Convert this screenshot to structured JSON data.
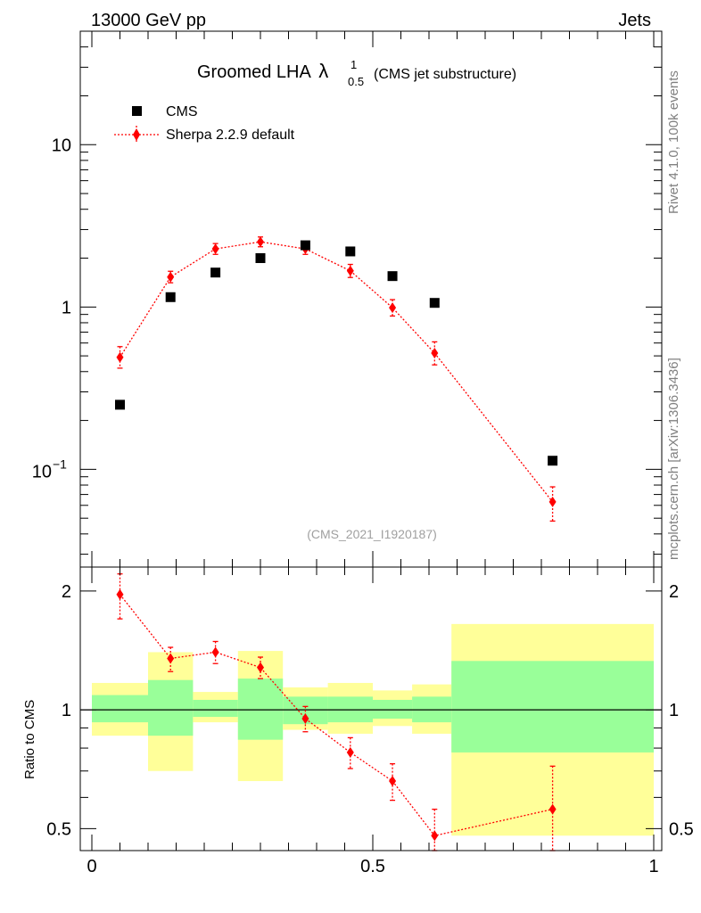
{
  "header": {
    "energy_label": "13000 GeV pp",
    "category_label": "Jets",
    "rivet_label": "Rivet 4.1.0,  100k events",
    "site_label": "mcplots.cern.ch [arXiv:1306.3436]",
    "analysis_id": "(CMS_2021_I1920187)"
  },
  "colors": {
    "data": "#000000",
    "mc": "#ff0000",
    "band_inner": "#99ff99",
    "band_outer": "#ffff99"
  },
  "chart_data": [
    {
      "type": "scatter",
      "panel": "main",
      "title": "Groomed LHA",
      "title_symbol": "λ",
      "title_sup": "1",
      "title_sub": "0.5",
      "title_suffix": "(CMS jet substructure)",
      "yscale": "log",
      "xlim": [
        0,
        1
      ],
      "ylim": [
        0.025,
        50
      ],
      "yticks": [
        {
          "value": 10,
          "label": "10"
        },
        {
          "value": 1,
          "label": "1"
        },
        {
          "value": 0.1,
          "label_base": "10",
          "label_exp": "−1"
        }
      ],
      "legend_position": "top-left",
      "series": [
        {
          "name": "CMS",
          "marker": "square",
          "x": [
            0.05,
            0.14,
            0.22,
            0.3,
            0.38,
            0.46,
            0.535,
            0.61,
            0.82
          ],
          "y": [
            0.25,
            1.15,
            1.63,
            2.0,
            2.4,
            2.2,
            1.55,
            1.06,
            0.113
          ]
        },
        {
          "name": "Sherpa 2.2.9 default",
          "marker": "diamond",
          "line": "dotted",
          "x": [
            0.05,
            0.14,
            0.22,
            0.3,
            0.38,
            0.46,
            0.535,
            0.61,
            0.82
          ],
          "y": [
            0.49,
            1.53,
            2.28,
            2.52,
            2.28,
            1.67,
            0.99,
            0.52,
            0.063
          ],
          "yerr_low": [
            0.07,
            0.12,
            0.17,
            0.17,
            0.17,
            0.15,
            0.11,
            0.08,
            0.015
          ],
          "yerr_high": [
            0.08,
            0.13,
            0.18,
            0.18,
            0.18,
            0.16,
            0.12,
            0.09,
            0.015
          ]
        }
      ]
    },
    {
      "type": "scatter",
      "panel": "ratio",
      "ylabel": "Ratio to CMS",
      "xlim": [
        0,
        1
      ],
      "ylim": [
        0.44,
        2.3
      ],
      "xticks": [
        {
          "value": 0,
          "label": "0"
        },
        {
          "value": 0.5,
          "label": "0.5"
        },
        {
          "value": 1,
          "label": "1"
        }
      ],
      "yticks": [
        {
          "value": 2,
          "label": "2"
        },
        {
          "value": 1,
          "label": "1"
        },
        {
          "value": 0.5,
          "label": "0.5"
        }
      ],
      "bands": [
        {
          "x0": 0.0,
          "x1": 0.1,
          "inner": [
            0.93,
            1.09
          ],
          "outer": [
            0.86,
            1.17
          ]
        },
        {
          "x0": 0.1,
          "x1": 0.18,
          "inner": [
            0.86,
            1.19
          ],
          "outer": [
            0.7,
            1.4
          ]
        },
        {
          "x0": 0.18,
          "x1": 0.26,
          "inner": [
            0.96,
            1.06
          ],
          "outer": [
            0.93,
            1.11
          ]
        },
        {
          "x0": 0.26,
          "x1": 0.34,
          "inner": [
            0.84,
            1.2
          ],
          "outer": [
            0.66,
            1.41
          ]
        },
        {
          "x0": 0.34,
          "x1": 0.42,
          "inner": [
            0.92,
            1.08
          ],
          "outer": [
            0.89,
            1.14
          ]
        },
        {
          "x0": 0.42,
          "x1": 0.5,
          "inner": [
            0.93,
            1.08
          ],
          "outer": [
            0.87,
            1.17
          ]
        },
        {
          "x0": 0.5,
          "x1": 0.57,
          "inner": [
            0.95,
            1.06
          ],
          "outer": [
            0.91,
            1.12
          ]
        },
        {
          "x0": 0.57,
          "x1": 0.64,
          "inner": [
            0.93,
            1.08
          ],
          "outer": [
            0.87,
            1.16
          ]
        },
        {
          "x0": 0.64,
          "x1": 1.0,
          "inner": [
            0.78,
            1.33
          ],
          "outer": [
            0.48,
            1.65
          ]
        }
      ],
      "reference_line": 1,
      "series": [
        {
          "name": "Sherpa 2.2.9 default / CMS",
          "marker": "diamond",
          "line": "dotted",
          "x": [
            0.05,
            0.14,
            0.22,
            0.3,
            0.38,
            0.46,
            0.535,
            0.61,
            0.82
          ],
          "y": [
            1.96,
            1.35,
            1.4,
            1.28,
            0.95,
            0.78,
            0.66,
            0.48,
            0.56
          ],
          "yerr_low": [
            0.26,
            0.1,
            0.09,
            0.08,
            0.07,
            0.07,
            0.07,
            0.08,
            0.15
          ],
          "yerr_high": [
            0.25,
            0.09,
            0.09,
            0.08,
            0.07,
            0.07,
            0.07,
            0.08,
            0.16
          ]
        }
      ]
    }
  ]
}
